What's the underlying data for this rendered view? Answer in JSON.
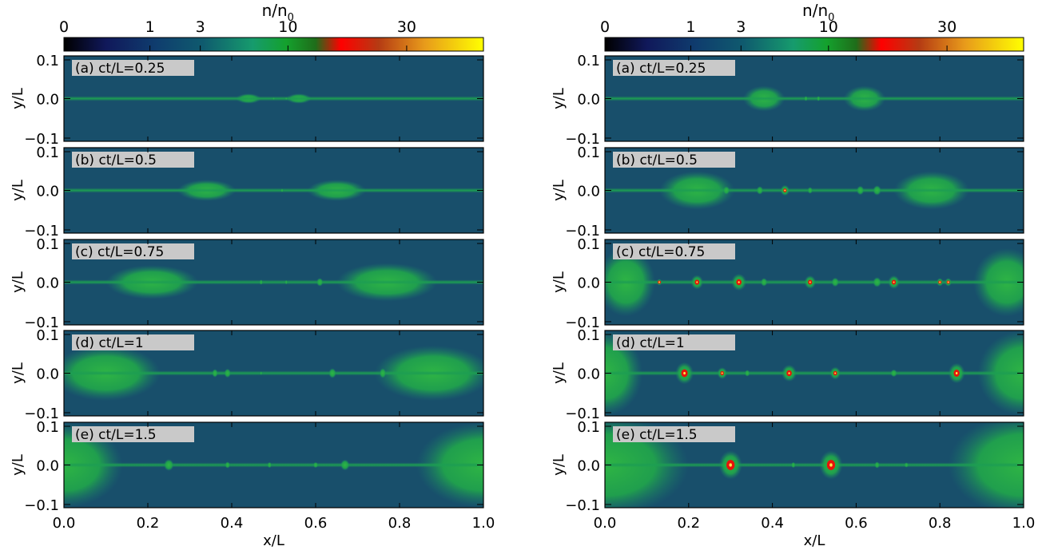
{
  "figure": {
    "colorbar_label": "n/n0",
    "colorbar_label_main": "n/n",
    "colorbar_label_sub": "0",
    "colorbar_ticks": [
      {
        "label": "0",
        "value": 0
      },
      {
        "label": "1",
        "value": 1
      },
      {
        "label": "3",
        "value": 3
      },
      {
        "label": "10",
        "value": 10
      },
      {
        "label": "30",
        "value": 30
      }
    ],
    "colorbar_stops": [
      {
        "pos": 0.0,
        "color": "#000000"
      },
      {
        "pos": 0.1,
        "color": "#10185a"
      },
      {
        "pos": 0.22,
        "color": "#0f3d6e"
      },
      {
        "pos": 0.33,
        "color": "#0f5a6e"
      },
      {
        "pos": 0.45,
        "color": "#169b6d"
      },
      {
        "pos": 0.53,
        "color": "#14a12d"
      },
      {
        "pos": 0.6,
        "color": "#1f6d1a"
      },
      {
        "pos": 0.66,
        "color": "#ff0000"
      },
      {
        "pos": 0.75,
        "color": "#b53b13"
      },
      {
        "pos": 0.86,
        "color": "#e89b1b"
      },
      {
        "pos": 1.0,
        "color": "#ffff00"
      }
    ],
    "background_color": "#184f6b",
    "current_sheet_color": "#1d9e52",
    "plasmoid_color": "#21a84a",
    "core_color": "#e8130a",
    "x_axis_label": "x/L",
    "y_axis_label": "y/L",
    "x_tick_labels": [
      "0.0",
      "0.2",
      "0.4",
      "0.6",
      "0.8",
      "1.0"
    ],
    "y_tick_labels": [
      "0.1",
      "0.0",
      "−0.1"
    ]
  },
  "chart_data": [
    {
      "type": "heatmap",
      "name": "left",
      "colorbar": {
        "ticks": [
          0,
          1,
          3,
          10,
          30
        ]
      },
      "xlim": [
        0,
        1
      ],
      "ylim": [
        -0.1,
        0.1
      ],
      "panels": [
        {
          "label": "(a) ct/L=0.25",
          "plasmoids": [
            {
              "x": 0.5,
              "rx": 0.001,
              "ry": 0.002,
              "core": false
            },
            {
              "x": 0.53,
              "rx": 0.001,
              "ry": 0.002,
              "core": false
            }
          ],
          "large_plasmoids": [
            {
              "x": 0.44,
              "rx": 0.03,
              "ry": 0.012
            },
            {
              "x": 0.56,
              "rx": 0.03,
              "ry": 0.012
            }
          ]
        },
        {
          "label": "(b) ct/L=0.5",
          "plasmoids": [
            {
              "x": 0.52,
              "rx": 0.003,
              "ry": 0.004,
              "core": false
            }
          ],
          "large_plasmoids": [
            {
              "x": 0.34,
              "rx": 0.07,
              "ry": 0.025
            },
            {
              "x": 0.65,
              "rx": 0.07,
              "ry": 0.025
            }
          ]
        },
        {
          "label": "(c) ct/L=0.75",
          "plasmoids": [
            {
              "x": 0.47,
              "rx": 0.004,
              "ry": 0.006,
              "core": false
            },
            {
              "x": 0.53,
              "rx": 0.003,
              "ry": 0.005,
              "core": false
            },
            {
              "x": 0.61,
              "rx": 0.008,
              "ry": 0.01,
              "core": false
            }
          ],
          "large_plasmoids": [
            {
              "x": 0.21,
              "rx": 0.11,
              "ry": 0.04
            },
            {
              "x": 0.77,
              "rx": 0.12,
              "ry": 0.045
            }
          ]
        },
        {
          "label": "(d) ct/L=1",
          "plasmoids": [
            {
              "x": 0.36,
              "rx": 0.007,
              "ry": 0.01,
              "core": false
            },
            {
              "x": 0.39,
              "rx": 0.008,
              "ry": 0.011,
              "core": false
            },
            {
              "x": 0.47,
              "rx": 0.002,
              "ry": 0.004,
              "core": false
            },
            {
              "x": 0.64,
              "rx": 0.009,
              "ry": 0.012,
              "core": false
            },
            {
              "x": 0.76,
              "rx": 0.008,
              "ry": 0.012,
              "core": false
            }
          ],
          "large_plasmoids": [
            {
              "x": 0.1,
              "rx": 0.13,
              "ry": 0.065
            },
            {
              "x": 0.88,
              "rx": 0.14,
              "ry": 0.065
            }
          ]
        },
        {
          "label": "(e) ct/L=1.5",
          "plasmoids": [
            {
              "x": 0.25,
              "rx": 0.012,
              "ry": 0.014,
              "core": false
            },
            {
              "x": 0.39,
              "rx": 0.006,
              "ry": 0.008,
              "core": false
            },
            {
              "x": 0.49,
              "rx": 0.005,
              "ry": 0.007,
              "core": false
            },
            {
              "x": 0.6,
              "rx": 0.006,
              "ry": 0.007,
              "core": false
            },
            {
              "x": 0.67,
              "rx": 0.011,
              "ry": 0.013,
              "core": false
            }
          ],
          "large_plasmoids": [
            {
              "x": 0.0,
              "rx": 0.14,
              "ry": 0.1
            },
            {
              "x": 1.0,
              "rx": 0.16,
              "ry": 0.1
            }
          ]
        }
      ]
    },
    {
      "type": "heatmap",
      "name": "right",
      "colorbar": {
        "ticks": [
          0,
          1,
          3,
          10,
          30
        ]
      },
      "xlim": [
        0,
        1
      ],
      "ylim": [
        -0.1,
        0.1
      ],
      "panels": [
        {
          "label": "(a) ct/L=0.25",
          "plasmoids": [
            {
              "x": 0.48,
              "rx": 0.004,
              "ry": 0.006,
              "core": false
            },
            {
              "x": 0.51,
              "rx": 0.004,
              "ry": 0.006,
              "core": false
            }
          ],
          "large_plasmoids": [
            {
              "x": 0.38,
              "rx": 0.05,
              "ry": 0.03
            },
            {
              "x": 0.62,
              "rx": 0.05,
              "ry": 0.03
            }
          ]
        },
        {
          "label": "(b) ct/L=0.5",
          "plasmoids": [
            {
              "x": 0.29,
              "rx": 0.008,
              "ry": 0.01,
              "core": false
            },
            {
              "x": 0.37,
              "rx": 0.008,
              "ry": 0.01,
              "core": false
            },
            {
              "x": 0.43,
              "rx": 0.011,
              "ry": 0.013,
              "core": true
            },
            {
              "x": 0.49,
              "rx": 0.006,
              "ry": 0.008,
              "core": false
            },
            {
              "x": 0.61,
              "rx": 0.009,
              "ry": 0.011,
              "core": false
            },
            {
              "x": 0.65,
              "rx": 0.01,
              "ry": 0.012,
              "core": false
            }
          ],
          "large_plasmoids": [
            {
              "x": 0.22,
              "rx": 0.09,
              "ry": 0.045
            },
            {
              "x": 0.78,
              "rx": 0.09,
              "ry": 0.045
            }
          ]
        },
        {
          "label": "(c) ct/L=0.75",
          "plasmoids": [
            {
              "x": 0.13,
              "rx": 0.006,
              "ry": 0.008,
              "core": true
            },
            {
              "x": 0.22,
              "rx": 0.015,
              "ry": 0.017,
              "core": true
            },
            {
              "x": 0.32,
              "rx": 0.018,
              "ry": 0.02,
              "core": true
            },
            {
              "x": 0.38,
              "rx": 0.008,
              "ry": 0.01,
              "core": false
            },
            {
              "x": 0.49,
              "rx": 0.014,
              "ry": 0.016,
              "core": true
            },
            {
              "x": 0.55,
              "rx": 0.009,
              "ry": 0.011,
              "core": false
            },
            {
              "x": 0.65,
              "rx": 0.01,
              "ry": 0.012,
              "core": false
            },
            {
              "x": 0.69,
              "rx": 0.014,
              "ry": 0.016,
              "core": true
            },
            {
              "x": 0.8,
              "rx": 0.008,
              "ry": 0.01,
              "core": true
            },
            {
              "x": 0.82,
              "rx": 0.008,
              "ry": 0.01,
              "core": true
            }
          ],
          "large_plasmoids": [
            {
              "x": 0.05,
              "rx": 0.07,
              "ry": 0.08
            },
            {
              "x": 0.96,
              "rx": 0.08,
              "ry": 0.08
            }
          ]
        },
        {
          "label": "(d) ct/L=1",
          "plasmoids": [
            {
              "x": 0.19,
              "rx": 0.022,
              "ry": 0.026,
              "core": true
            },
            {
              "x": 0.28,
              "rx": 0.012,
              "ry": 0.014,
              "core": true
            },
            {
              "x": 0.34,
              "rx": 0.006,
              "ry": 0.008,
              "core": false
            },
            {
              "x": 0.44,
              "rx": 0.018,
              "ry": 0.02,
              "core": true
            },
            {
              "x": 0.55,
              "rx": 0.013,
              "ry": 0.015,
              "core": true
            },
            {
              "x": 0.69,
              "rx": 0.008,
              "ry": 0.009,
              "core": false
            },
            {
              "x": 0.84,
              "rx": 0.02,
              "ry": 0.024,
              "core": true
            }
          ],
          "large_plasmoids": [
            {
              "x": 0.0,
              "rx": 0.09,
              "ry": 0.1
            },
            {
              "x": 1.0,
              "rx": 0.11,
              "ry": 0.1
            }
          ]
        },
        {
          "label": "(e) ct/L=1.5",
          "plasmoids": [
            {
              "x": 0.3,
              "rx": 0.028,
              "ry": 0.034,
              "core": true
            },
            {
              "x": 0.45,
              "rx": 0.005,
              "ry": 0.007,
              "core": false
            },
            {
              "x": 0.54,
              "rx": 0.028,
              "ry": 0.034,
              "core": true
            },
            {
              "x": 0.65,
              "rx": 0.006,
              "ry": 0.008,
              "core": false
            },
            {
              "x": 0.72,
              "rx": 0.005,
              "ry": 0.006,
              "core": false
            }
          ],
          "large_plasmoids": [
            {
              "x": 0.0,
              "rx": 0.2,
              "ry": 0.12
            },
            {
              "x": 1.0,
              "rx": 0.18,
              "ry": 0.12
            }
          ]
        }
      ]
    }
  ]
}
